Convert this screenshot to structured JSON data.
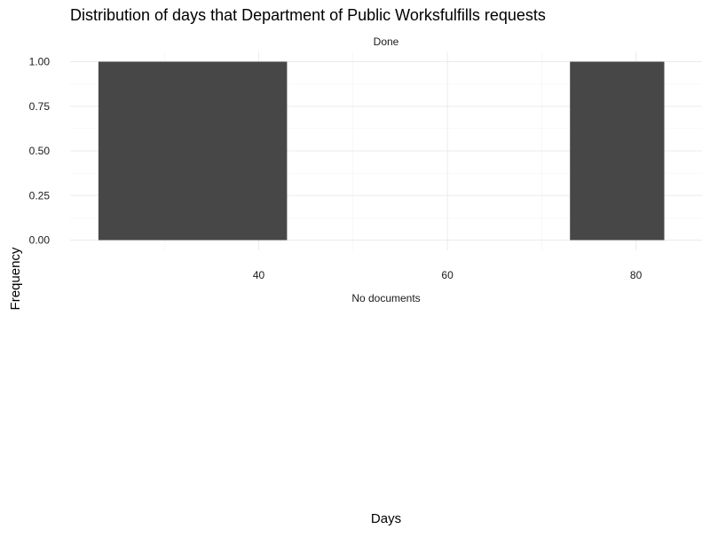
{
  "chart_data": {
    "type": "bar",
    "title": "Distribution of days that Department of Public Worksfulfills requests",
    "xlabel": "Days",
    "ylabel": "Frequency",
    "facet_label": "Done",
    "grid": true,
    "legend": "none",
    "xlim": [
      20,
      87
    ],
    "ylim": [
      0,
      1
    ],
    "x_ticks": [
      {
        "value": 40,
        "label": "40"
      },
      {
        "value": 60,
        "label": "60"
      },
      {
        "value": 80,
        "label": "80"
      }
    ],
    "y_ticks": [
      {
        "value": 0,
        "label": "0.00"
      },
      {
        "value": 0.25,
        "label": "0.25"
      },
      {
        "value": 0.5,
        "label": "0.50"
      },
      {
        "value": 0.75,
        "label": "0.75"
      },
      {
        "value": 1,
        "label": "1.00"
      }
    ],
    "bars": [
      {
        "x_start": 23,
        "x_end": 43,
        "count": 1
      },
      {
        "x_start": 73,
        "x_end": 83,
        "count": 1
      }
    ],
    "bar_color": "#474747",
    "annotations": [
      "No documents"
    ]
  }
}
